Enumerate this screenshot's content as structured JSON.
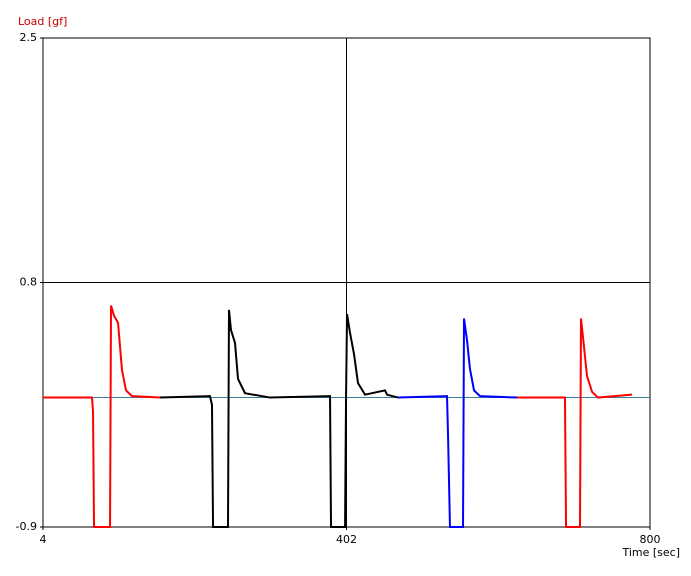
{
  "chart_data": {
    "type": "line",
    "y_label": "Load [gf]",
    "x_label": "Time [sec]",
    "xlim": [
      4,
      800
    ],
    "xticks": [
      4,
      402,
      800
    ],
    "ylim": [
      -0.9,
      2.5
    ],
    "yticks": [
      -0.9,
      0.8,
      2.5
    ],
    "grid_x": [
      402
    ],
    "grid_y": [
      0.8
    ],
    "reference_line": 0,
    "reference_color": "#3a7f9a",
    "series": [
      {
        "color": "#ff0000",
        "x": [
          4,
          68.3,
          69.6,
          70.9,
          91.9,
          93.2,
          97.1,
          102.4,
          107.6,
          112.8,
          120.7,
          157.4
        ],
        "values": [
          0.0,
          0.0,
          -0.1,
          -0.9,
          -0.9,
          0.64,
          0.57,
          0.52,
          0.19,
          0.05,
          0.01,
          0.0
        ]
      },
      {
        "color": "#000000",
        "x": [
          157.4,
          223.0,
          225.6,
          227.0,
          246.6,
          247.9,
          250.5,
          255.8,
          259.7,
          268.9,
          301.7,
          380.4,
          381.7,
          400.1,
          401.4,
          402.7,
          406.6,
          411.9,
          417.1,
          426.3,
          452.5,
          455.2,
          469.6
        ],
        "values": [
          0.0,
          0.01,
          -0.05,
          -0.9,
          -0.9,
          0.61,
          0.47,
          0.38,
          0.13,
          0.03,
          0.0,
          0.01,
          -0.9,
          -0.9,
          0.0,
          0.58,
          0.45,
          0.3,
          0.1,
          0.02,
          0.05,
          0.02,
          0.0
        ]
      },
      {
        "color": "#0000ff",
        "x": [
          469.6,
          533.8,
          535.1,
          537.7,
          554.8,
          556.1,
          560.0,
          563.9,
          569.2,
          577.1,
          625.6
        ],
        "values": [
          0.0,
          0.01,
          -0.25,
          -0.9,
          -0.9,
          0.55,
          0.4,
          0.2,
          0.05,
          0.01,
          0.0
        ]
      },
      {
        "color": "#ff0000",
        "x": [
          625.6,
          688.5,
          689.9,
          708.2,
          709.5,
          713.5,
          717.4,
          724.0,
          731.8,
          776.4
        ],
        "values": [
          0.0,
          0.0,
          -0.9,
          -0.9,
          0.55,
          0.35,
          0.15,
          0.04,
          0.0,
          0.02
        ]
      }
    ]
  }
}
